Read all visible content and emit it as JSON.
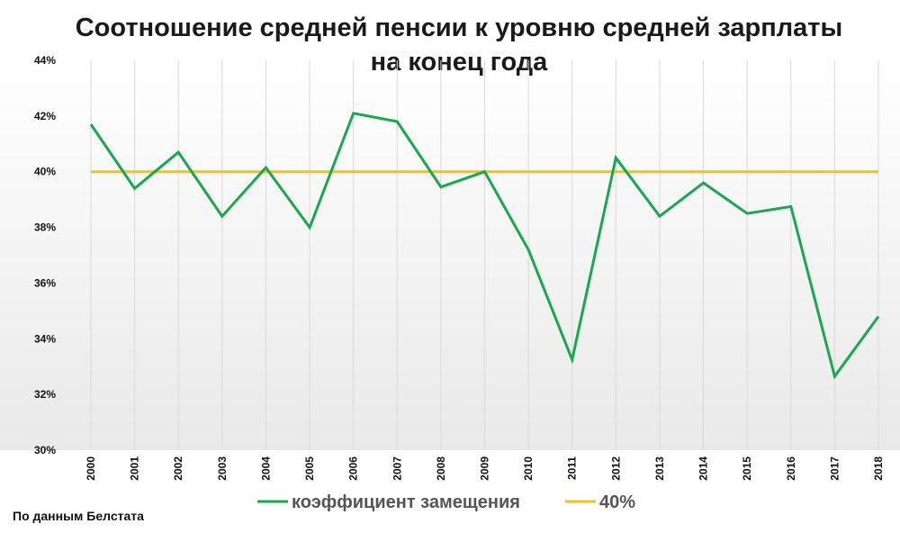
{
  "title_line1": "Соотношение средней пенсии к уровню средней зарплаты",
  "title_line2": "на конец года",
  "source": "По данным Белстата",
  "colors": {
    "replacement": "#1aa84e",
    "threshold": "#f2c21b",
    "grid": "#d9d9d9"
  },
  "chart_data": {
    "type": "line",
    "title": "Соотношение средней пенсии к уровню средней зарплаты на конец года",
    "x": [
      "2000",
      "2001",
      "2002",
      "2003",
      "2004",
      "2005",
      "2006",
      "2007",
      "2008",
      "2009",
      "2010",
      "2011",
      "2012",
      "2013",
      "2014",
      "2015",
      "2016",
      "2017",
      "2018"
    ],
    "series": [
      {
        "name": "коэффициент замещения",
        "values": [
          41.7,
          39.4,
          40.7,
          38.4,
          40.15,
          38.0,
          42.1,
          41.8,
          39.45,
          40.0,
          37.2,
          33.25,
          40.5,
          38.4,
          39.6,
          38.5,
          38.75,
          32.65,
          34.8
        ]
      },
      {
        "name": "40%",
        "values": [
          40,
          40,
          40,
          40,
          40,
          40,
          40,
          40,
          40,
          40,
          40,
          40,
          40,
          40,
          40,
          40,
          40,
          40,
          40
        ]
      }
    ],
    "y_ticks": [
      "30%",
      "32%",
      "34%",
      "36%",
      "38%",
      "40%",
      "42%",
      "44%"
    ],
    "ylim": [
      30,
      44
    ],
    "grid": "vertical",
    "legend_position": "bottom"
  }
}
